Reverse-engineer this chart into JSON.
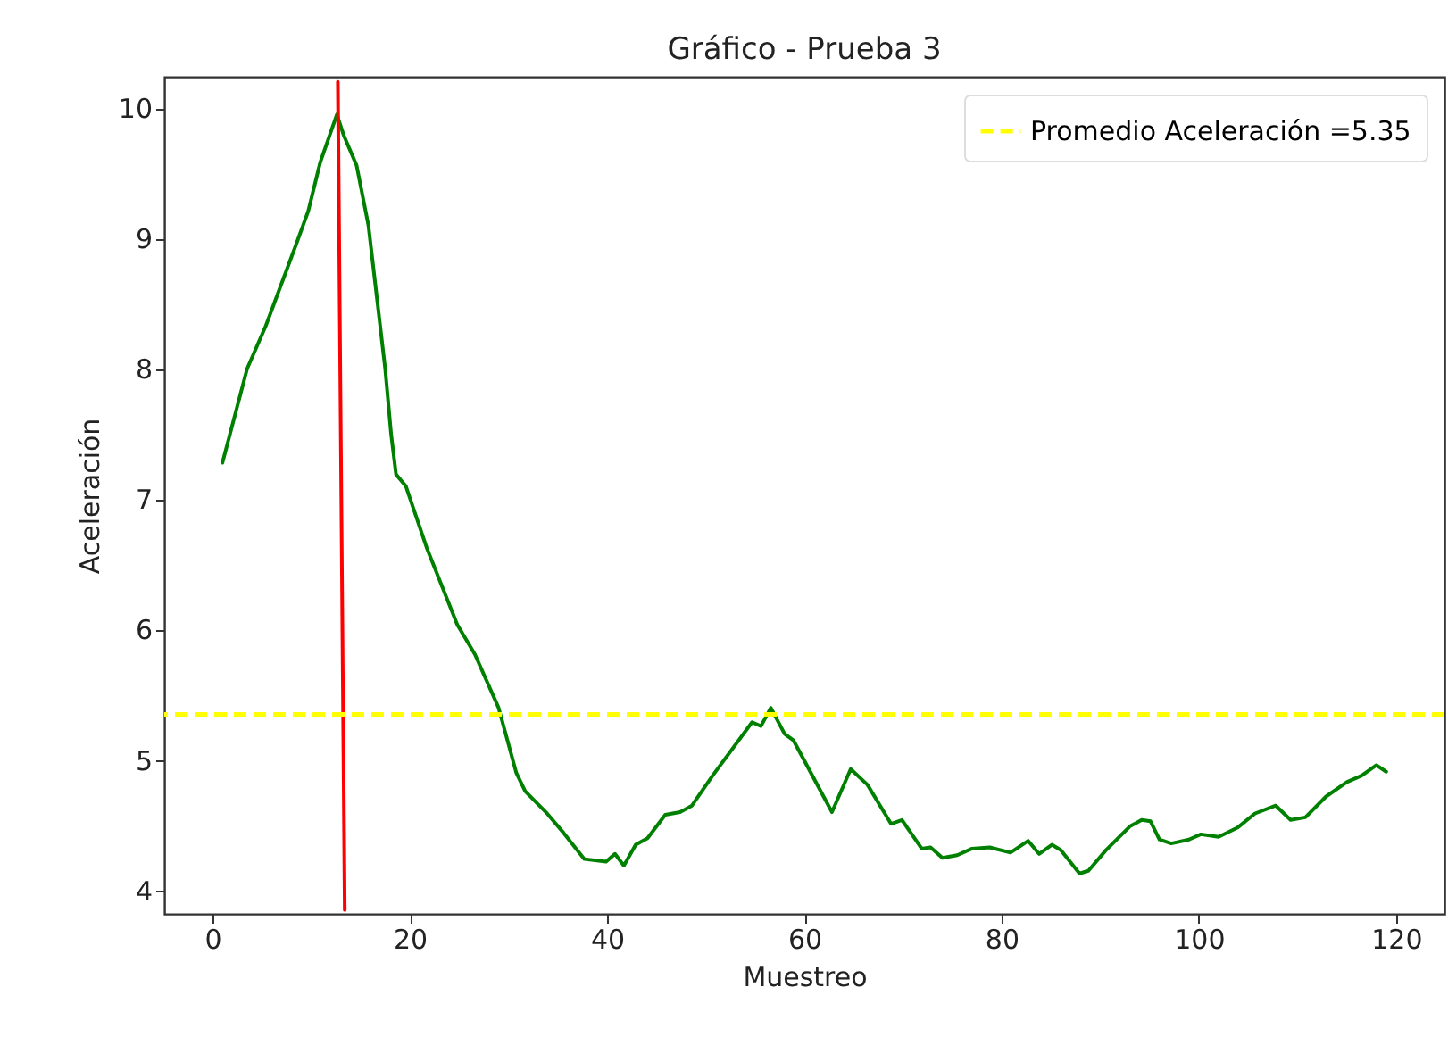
{
  "chart_data": {
    "type": "line",
    "title": "Gráfico - Prueba 3",
    "xlabel": "Muestreo",
    "ylabel": "Aceleración",
    "xlim": [
      -4.9,
      124.9
    ],
    "xticks": [
      0,
      20,
      40,
      60,
      80,
      100,
      120
    ],
    "ylim": [
      3.82,
      10.24
    ],
    "yticks": [
      4,
      5,
      6,
      7,
      8,
      9,
      10
    ],
    "grid": false,
    "legend": "top right",
    "marker": "none",
    "line_style": "solid",
    "series": [
      {
        "color": "#008000",
        "x": [
          1,
          3.5,
          5.4,
          8.5,
          9.7,
          10.9,
          12.6,
          13.3,
          14.6,
          15.8,
          17.5,
          18.1,
          18.6,
          19.6,
          21.7,
          24.8,
          26.6,
          29,
          30.8,
          31.7,
          33.8,
          35.6,
          37.7,
          39.9,
          40.8,
          41.7,
          42.9,
          44.1,
          45.9,
          47.4,
          48.6,
          50.7,
          54.7,
          55.6,
          56.6,
          58,
          58.9,
          62.8,
          64.7,
          66.4,
          68.8,
          69.9,
          71.9,
          72.8,
          74,
          75.5,
          77,
          78.8,
          80.9,
          82.7,
          83.8,
          85.1,
          86,
          87.9,
          88.8,
          90.6,
          93,
          94.2,
          95.1,
          96,
          97.2,
          99,
          100.2,
          102,
          103.9,
          105.7,
          107.8,
          109.3,
          110.8,
          112.9,
          115,
          116.5,
          118,
          119
        ],
        "values": [
          7.28,
          8.0,
          8.33,
          8.96,
          9.21,
          9.58,
          9.95,
          9.79,
          9.56,
          9.1,
          8.0,
          7.5,
          7.19,
          7.1,
          6.63,
          6.04,
          5.81,
          5.4,
          4.9,
          4.76,
          4.6,
          4.44,
          4.24,
          4.22,
          4.28,
          4.19,
          4.35,
          4.4,
          4.58,
          4.6,
          4.65,
          4.88,
          5.29,
          5.26,
          5.4,
          5.2,
          5.15,
          4.6,
          4.93,
          4.81,
          4.51,
          4.54,
          4.32,
          4.33,
          4.25,
          4.27,
          4.32,
          4.33,
          4.29,
          4.38,
          4.28,
          4.35,
          4.31,
          4.13,
          4.15,
          4.31,
          4.49,
          4.54,
          4.53,
          4.39,
          4.36,
          4.39,
          4.43,
          4.41,
          4.48,
          4.59,
          4.65,
          4.54,
          4.56,
          4.72,
          4.83,
          4.88,
          4.96,
          4.91
        ]
      },
      {
        "color": "#ff0000",
        "x": [
          12.7,
          13.4
        ],
        "values": [
          10.2,
          3.85
        ]
      }
    ],
    "ref_lines": [
      {
        "axis": "y",
        "value": 5.35,
        "label": "Promedio Aceleración =5.35",
        "color": "#ffff00",
        "line_style": "dashed"
      }
    ]
  }
}
